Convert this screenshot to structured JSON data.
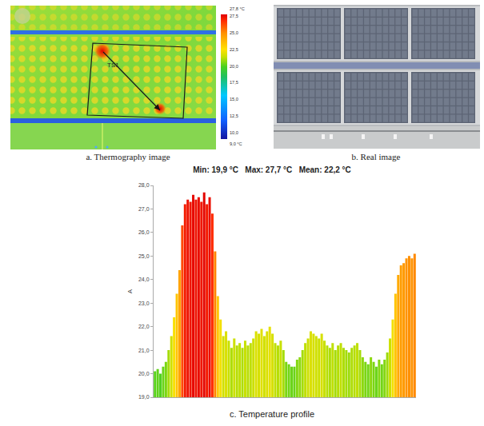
{
  "panels": {
    "a": {
      "caption": "a. Thermography image",
      "marker_label": "TS1",
      "colorbar": {
        "range": [
          9.0,
          27.8
        ],
        "ticks": [
          {
            "value": 27.8,
            "label": "27,8 °C"
          },
          {
            "value": 27.5,
            "label": "27,5"
          },
          {
            "value": 25.0,
            "label": "25,0"
          },
          {
            "value": 22.5,
            "label": "22,5"
          },
          {
            "value": 20.0,
            "label": "20,0"
          },
          {
            "value": 17.5,
            "label": "17,5"
          },
          {
            "value": 15.0,
            "label": "15,0"
          },
          {
            "value": 12.5,
            "label": "12,5"
          },
          {
            "value": 10.0,
            "label": "10,0"
          },
          {
            "value": 9.0,
            "label": "9,0 °C"
          }
        ]
      }
    },
    "b": {
      "caption": "b. Real image"
    },
    "c": {
      "caption": "c. Temperature profile"
    }
  },
  "chart_data": {
    "type": "bar",
    "title": "Min: 19,9 °C   Max: 27,7 °C   Mean: 22,2 °C",
    "ylabel": "A",
    "categories": [
      null,
      null,
      null,
      null,
      null,
      null,
      null,
      null,
      null,
      null,
      null,
      null,
      null,
      null,
      null,
      null,
      null,
      null,
      null,
      null,
      null,
      null,
      null,
      null,
      null,
      null,
      null,
      null,
      null,
      null,
      null,
      null,
      null,
      null,
      null,
      null,
      null,
      null,
      null,
      null,
      null,
      null,
      null,
      null,
      null,
      null,
      null,
      null,
      null,
      null,
      null,
      null,
      null,
      null,
      null,
      null,
      null,
      null,
      null,
      null,
      null,
      null,
      null,
      null,
      null,
      null,
      null,
      null,
      null,
      null,
      null,
      null,
      null,
      null,
      null,
      null,
      null,
      null,
      null,
      null,
      null,
      null,
      null,
      null,
      null,
      null,
      null,
      null,
      null,
      null,
      null,
      null,
      null,
      null,
      null,
      null
    ],
    "values": [
      20.1,
      20.2,
      20.0,
      20.3,
      20.5,
      21.0,
      21.6,
      22.4,
      23.4,
      24.4,
      26.3,
      27.2,
      27.4,
      27.3,
      27.6,
      27.4,
      27.5,
      27.3,
      27.7,
      27.2,
      27.5,
      26.8,
      25.2,
      23.3,
      22.3,
      21.6,
      21.8,
      21.4,
      21.1,
      21.5,
      21.2,
      21.3,
      21.1,
      21.4,
      21.2,
      21.3,
      21.5,
      21.8,
      21.7,
      21.9,
      21.6,
      21.8,
      22.0,
      21.7,
      21.3,
      21.2,
      21.4,
      21.0,
      20.5,
      20.4,
      20.3,
      20.3,
      20.6,
      20.7,
      21.0,
      21.3,
      21.5,
      21.8,
      21.7,
      21.6,
      21.5,
      21.7,
      21.4,
      21.2,
      21.1,
      21.3,
      21.0,
      21.2,
      21.3,
      21.1,
      21.0,
      20.9,
      21.1,
      21.2,
      21.3,
      21.0,
      20.7,
      20.5,
      20.4,
      20.7,
      20.5,
      20.3,
      20.6,
      20.4,
      20.6,
      20.9,
      21.5,
      22.3,
      23.4,
      24.2,
      24.6,
      24.7,
      24.9,
      25.0,
      24.9,
      25.1
    ],
    "ylim": [
      19,
      28
    ],
    "yticks": [
      {
        "value": 19,
        "label": "19,0"
      },
      {
        "value": 20,
        "label": "20,0"
      },
      {
        "value": 21,
        "label": "21,0"
      },
      {
        "value": 22,
        "label": "22,0"
      },
      {
        "value": 23,
        "label": "23,0"
      },
      {
        "value": 24,
        "label": "24,0"
      },
      {
        "value": 25,
        "label": "25,0"
      },
      {
        "value": 26,
        "label": "26,0"
      },
      {
        "value": 27,
        "label": "27,0"
      },
      {
        "value": 28,
        "label": "28,0"
      }
    ],
    "grid": false,
    "tick_labels": "y"
  }
}
